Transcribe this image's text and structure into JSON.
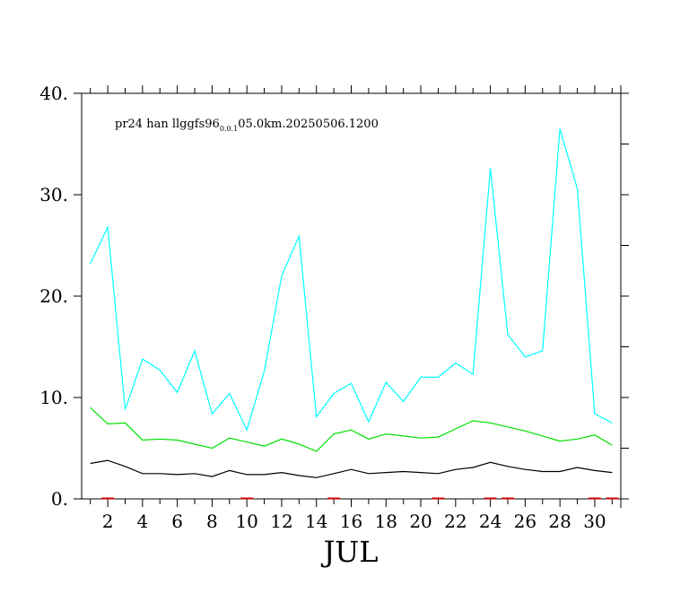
{
  "chart_data": {
    "type": "line",
    "title": {
      "prefix": "pr24 han llggfs96",
      "subscript": "0.0.1",
      "suffix": "05.0km.20250506.1200"
    },
    "xlabel": "JUL",
    "x": [
      1,
      2,
      3,
      4,
      5,
      6,
      7,
      8,
      9,
      10,
      11,
      12,
      13,
      14,
      15,
      16,
      17,
      18,
      19,
      20,
      21,
      22,
      23,
      24,
      25,
      26,
      27,
      28,
      29,
      30,
      31
    ],
    "xlim": [
      0.5,
      31.5
    ],
    "xticks": [
      2,
      4,
      6,
      8,
      10,
      12,
      14,
      16,
      18,
      20,
      22,
      24,
      26,
      28,
      30
    ],
    "ylim": [
      0,
      40
    ],
    "yticks": [
      0,
      10,
      20,
      30,
      40
    ],
    "ytick_labels": [
      "0.",
      "10.",
      "20.",
      "30.",
      "40."
    ],
    "grid": false,
    "series": [
      {
        "color": "#00ffff",
        "values": [
          23.2,
          26.8,
          8.8,
          13.8,
          12.7,
          10.5,
          14.6,
          8.4,
          10.4,
          6.8,
          12.6,
          22.0,
          25.9,
          8.1,
          10.4,
          11.4,
          7.6,
          11.5,
          9.6,
          12.0,
          12.0,
          13.4,
          12.3,
          32.6,
          16.2,
          14.0,
          14.6,
          36.5,
          30.6,
          8.4,
          7.5
        ]
      },
      {
        "color": "#00e000",
        "values": [
          9.0,
          7.4,
          7.5,
          5.8,
          5.9,
          5.8,
          5.4,
          5.0,
          6.0,
          5.6,
          5.2,
          5.9,
          5.4,
          4.7,
          6.4,
          6.8,
          5.9,
          6.4,
          6.2,
          6.0,
          6.1,
          6.9,
          7.7,
          7.5,
          7.1,
          6.7,
          6.2,
          5.7,
          5.9,
          6.3,
          5.3
        ]
      },
      {
        "color": "#000000",
        "values": [
          3.5,
          3.8,
          3.2,
          2.5,
          2.5,
          2.4,
          2.5,
          2.2,
          2.8,
          2.4,
          2.4,
          2.6,
          2.3,
          2.1,
          2.5,
          2.9,
          2.5,
          2.6,
          2.7,
          2.6,
          2.5,
          2.9,
          3.1,
          3.6,
          3.2,
          2.9,
          2.7,
          2.7,
          3.1,
          2.8,
          2.6
        ]
      },
      {
        "color": "#cc0000",
        "values": [
          0,
          0.05,
          0,
          0,
          0,
          0,
          0,
          0,
          0,
          0.05,
          0,
          0,
          0,
          0,
          0.05,
          0,
          0,
          0,
          0,
          0,
          0.05,
          0,
          0,
          0.05,
          0.05,
          0,
          0,
          0,
          0,
          0.05,
          0.05
        ]
      }
    ]
  }
}
